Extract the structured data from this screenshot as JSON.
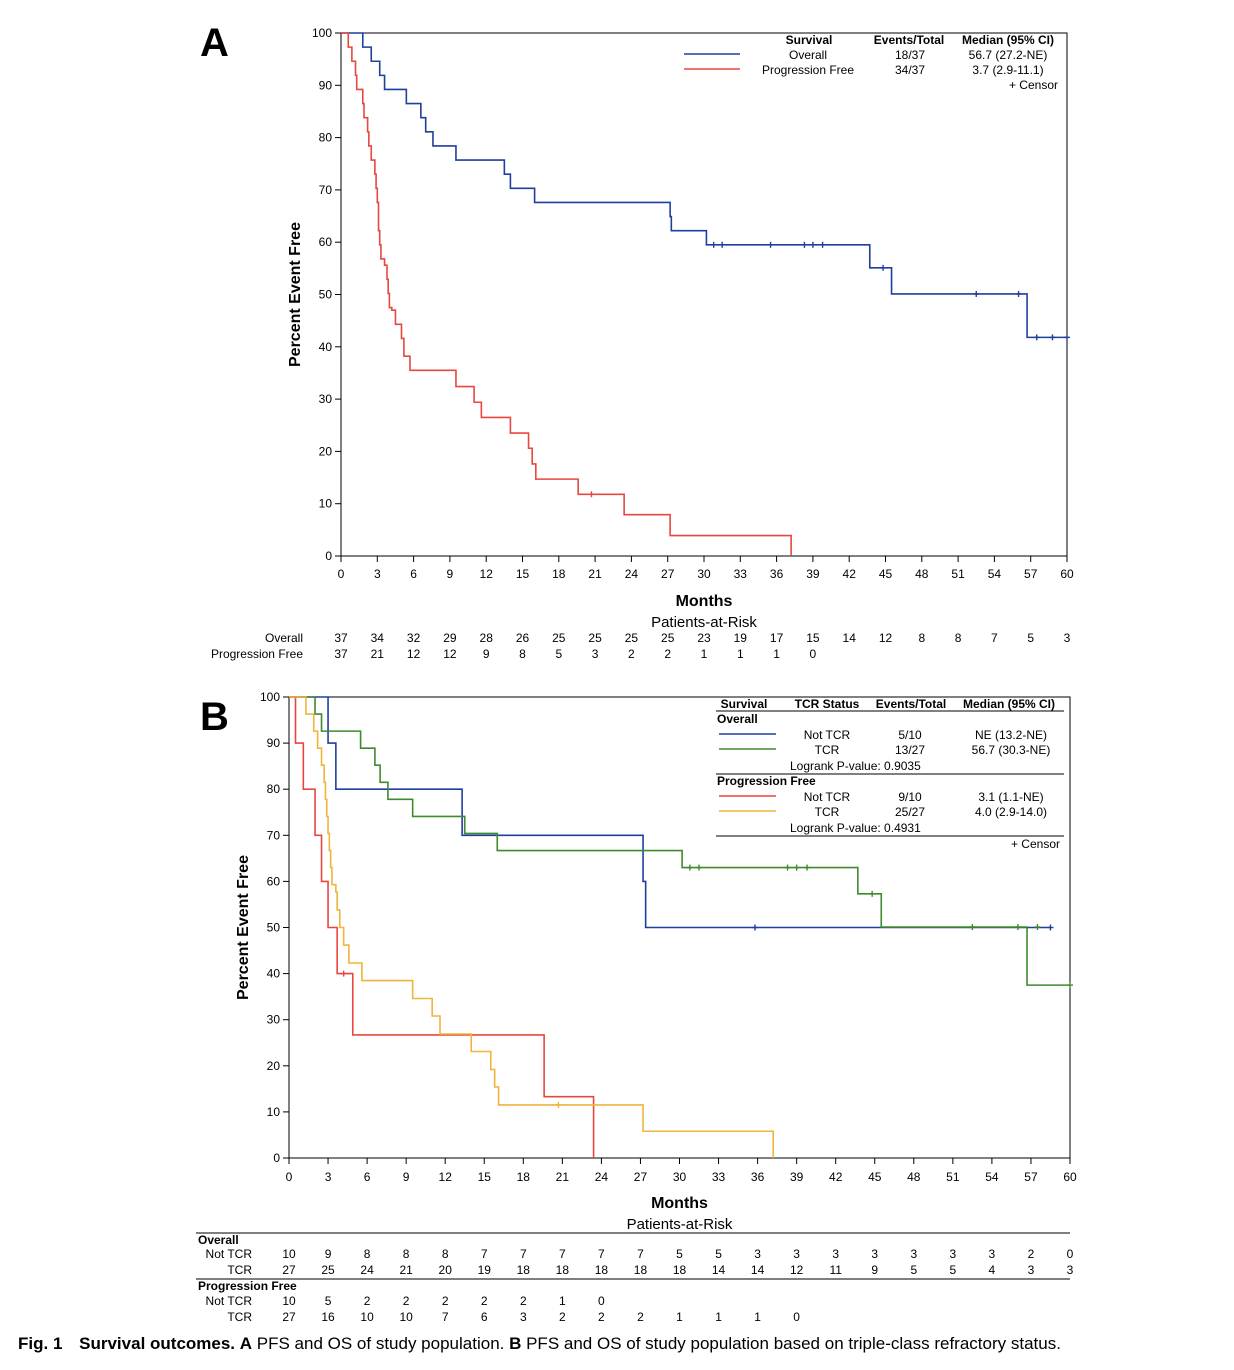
{
  "caption": {
    "label": "Fig. 1",
    "title": "Survival outcomes.",
    "a_letter": "A",
    "a_text": " PFS and OS of study population. ",
    "b_letter": "B",
    "b_text": " PFS and OS of study population based on triple-class refractory status."
  },
  "colors": {
    "blue": "#1f3f9e",
    "red": "#e8473f",
    "green": "#3f8a2e",
    "orange": "#f0b43c"
  },
  "chart_data": [
    {
      "panel": "A",
      "type": "line",
      "step": true,
      "xlabel": "Months",
      "ylabel": "Percent Event Free",
      "xlim": [
        0,
        60
      ],
      "ylim": [
        0,
        100
      ],
      "xticks": [
        0,
        3,
        6,
        9,
        12,
        15,
        18,
        21,
        24,
        27,
        30,
        33,
        36,
        39,
        42,
        45,
        48,
        51,
        54,
        57,
        60
      ],
      "yticks": [
        0,
        10,
        20,
        30,
        40,
        50,
        60,
        70,
        80,
        90,
        100
      ],
      "legend": {
        "headers": [
          "Survival",
          "Events/Total",
          "Median (95% CI)"
        ],
        "rows": [
          {
            "name": "Overall",
            "events": "18/37",
            "median": "56.7 (27.2-NE)",
            "color": "blue"
          },
          {
            "name": "Progression Free",
            "events": "34/37",
            "median": "3.7 (2.9-11.1)",
            "color": "red"
          }
        ],
        "censor": "+  Censor"
      },
      "series": [
        {
          "name": "Overall",
          "color": "blue",
          "steps": [
            [
              0,
              100
            ],
            [
              1.8,
              97.3
            ],
            [
              2.5,
              94.6
            ],
            [
              3.2,
              91.9
            ],
            [
              3.6,
              89.2
            ],
            [
              5.4,
              86.5
            ],
            [
              6.6,
              83.8
            ],
            [
              7,
              81.1
            ],
            [
              7.6,
              78.4
            ],
            [
              9.5,
              75.7
            ],
            [
              13.5,
              73
            ],
            [
              14,
              70.3
            ],
            [
              16,
              67.6
            ],
            [
              27.2,
              64.9
            ],
            [
              27.3,
              62.2
            ],
            [
              30.2,
              59.5
            ],
            [
              43.7,
              55.1
            ],
            [
              45.5,
              50.1
            ],
            [
              56.7,
              41.8
            ],
            [
              60,
              41.8
            ]
          ],
          "censors": [
            [
              30.8,
              59.5
            ],
            [
              31.5,
              59.5
            ],
            [
              35.5,
              59.5
            ],
            [
              38.3,
              59.5
            ],
            [
              39,
              59.5
            ],
            [
              39.8,
              59.5
            ],
            [
              44.8,
              55.1
            ],
            [
              52.5,
              50.1
            ],
            [
              56,
              50.1
            ],
            [
              57.5,
              41.8
            ],
            [
              58.8,
              41.8
            ],
            [
              60,
              41.8
            ]
          ]
        },
        {
          "name": "Progression Free",
          "color": "red",
          "steps": [
            [
              0,
              100
            ],
            [
              0.6,
              97.3
            ],
            [
              0.9,
              94.6
            ],
            [
              1.2,
              91.9
            ],
            [
              1.3,
              89.2
            ],
            [
              1.8,
              86.5
            ],
            [
              1.9,
              83.8
            ],
            [
              2.2,
              81.1
            ],
            [
              2.3,
              78.4
            ],
            [
              2.5,
              75.7
            ],
            [
              2.8,
              73
            ],
            [
              2.9,
              70.3
            ],
            [
              3,
              67.6
            ],
            [
              3.1,
              62.2
            ],
            [
              3.2,
              59.5
            ],
            [
              3.3,
              56.8
            ],
            [
              3.6,
              55.6
            ],
            [
              3.8,
              52.9
            ],
            [
              3.9,
              50.2
            ],
            [
              4,
              47.5
            ],
            [
              4.2,
              47
            ],
            [
              4.5,
              44.3
            ],
            [
              5,
              41.6
            ],
            [
              5.2,
              38.2
            ],
            [
              5.7,
              35.5
            ],
            [
              9.5,
              32.4
            ],
            [
              11,
              29.4
            ],
            [
              11.6,
              26.5
            ],
            [
              14,
              23.5
            ],
            [
              15.5,
              20.6
            ],
            [
              15.8,
              17.6
            ],
            [
              16.1,
              14.7
            ],
            [
              19.6,
              11.8
            ],
            [
              23.4,
              7.9
            ],
            [
              27.2,
              3.9
            ],
            [
              37.2,
              0
            ]
          ],
          "censors": [
            [
              20.7,
              11.8
            ]
          ]
        }
      ],
      "risk_table": {
        "title": "Patients-at-Risk",
        "times": [
          0,
          3,
          6,
          9,
          12,
          15,
          18,
          21,
          24,
          27,
          30,
          33,
          36,
          39,
          42,
          45,
          48,
          51,
          54,
          57,
          60
        ],
        "rows": [
          {
            "label": "Overall",
            "values": [
              "37",
              "34",
              "32",
              "29",
              "28",
              "26",
              "25",
              "25",
              "25",
              "25",
              "23",
              "19",
              "17",
              "15",
              "14",
              "12",
              "8",
              "8",
              "7",
              "5",
              "3"
            ]
          },
          {
            "label": "Progression Free",
            "values": [
              "37",
              "21",
              "12",
              "12",
              "9",
              "8",
              "5",
              "3",
              "2",
              "2",
              "1",
              "1",
              "1",
              "0",
              "",
              "",
              "",
              "",
              "",
              "",
              ""
            ]
          }
        ]
      }
    },
    {
      "panel": "B",
      "type": "line",
      "step": true,
      "xlabel": "Months",
      "ylabel": "Percent Event Free",
      "xlim": [
        0,
        60
      ],
      "ylim": [
        0,
        100
      ],
      "xticks": [
        0,
        3,
        6,
        9,
        12,
        15,
        18,
        21,
        24,
        27,
        30,
        33,
        36,
        39,
        42,
        45,
        48,
        51,
        54,
        57,
        60
      ],
      "yticks": [
        0,
        10,
        20,
        30,
        40,
        50,
        60,
        70,
        80,
        90,
        100
      ],
      "legend": {
        "headers": [
          "Survival",
          "TCR Status",
          "Events/Total",
          "Median (95% CI)"
        ],
        "group1": {
          "title": "Overall",
          "rows": [
            {
              "name": "Not TCR",
              "events": "5/10",
              "median": "NE (13.2-NE)",
              "color": "blue"
            },
            {
              "name": "TCR",
              "events": "13/27",
              "median": "56.7 (30.3-NE)",
              "color": "green"
            }
          ],
          "logrank": "Logrank P-value: 0.9035"
        },
        "group2": {
          "title": "Progression Free",
          "rows": [
            {
              "name": "Not TCR",
              "events": "9/10",
              "median": "3.1 (1.1-NE)",
              "color": "red"
            },
            {
              "name": "TCR",
              "events": "25/27",
              "median": "4.0 (2.9-14.0)",
              "color": "orange"
            }
          ],
          "logrank": "Logrank P-value: 0.4931"
        },
        "censor": "+  Censor"
      },
      "series": [
        {
          "name": "Overall Not TCR",
          "color": "blue",
          "steps": [
            [
              0,
              100
            ],
            [
              3,
              90
            ],
            [
              3.6,
              80
            ],
            [
              13.3,
              70
            ],
            [
              27.2,
              60
            ],
            [
              27.4,
              50
            ],
            [
              58.5,
              50
            ]
          ],
          "censors": [
            [
              35.8,
              50
            ],
            [
              58.5,
              50
            ]
          ]
        },
        {
          "name": "Overall TCR",
          "color": "green",
          "steps": [
            [
              0,
              100
            ],
            [
              2,
              96.3
            ],
            [
              2.5,
              92.6
            ],
            [
              5.5,
              88.9
            ],
            [
              6.6,
              85.2
            ],
            [
              7,
              81.5
            ],
            [
              7.6,
              77.8
            ],
            [
              9.5,
              74.1
            ],
            [
              13.5,
              70.4
            ],
            [
              16,
              66.7
            ],
            [
              30.2,
              63
            ],
            [
              43.7,
              57.3
            ],
            [
              45.5,
              50.1
            ],
            [
              56.7,
              37.5
            ],
            [
              60,
              37.5
            ]
          ],
          "censors": [
            [
              30.8,
              63
            ],
            [
              31.5,
              63
            ],
            [
              38.3,
              63
            ],
            [
              39,
              63
            ],
            [
              39.8,
              63
            ],
            [
              44.8,
              57.3
            ],
            [
              52.5,
              50.1
            ],
            [
              56,
              50.1
            ],
            [
              57.5,
              50.1
            ],
            [
              60,
              37.5
            ]
          ]
        },
        {
          "name": "Progression Free Not TCR",
          "color": "red",
          "steps": [
            [
              0,
              100
            ],
            [
              0.5,
              90
            ],
            [
              1.1,
              80
            ],
            [
              2,
              70
            ],
            [
              2.5,
              60
            ],
            [
              3,
              50
            ],
            [
              3.7,
              40
            ],
            [
              4.9,
              26.7
            ],
            [
              19.6,
              13.3
            ],
            [
              23.4,
              0
            ]
          ],
          "censors": [
            [
              4.2,
              40
            ]
          ]
        },
        {
          "name": "Progression Free TCR",
          "color": "orange",
          "steps": [
            [
              0,
              100
            ],
            [
              1.3,
              96.3
            ],
            [
              1.9,
              92.6
            ],
            [
              2.2,
              88.9
            ],
            [
              2.5,
              85.2
            ],
            [
              2.7,
              81.5
            ],
            [
              2.8,
              77.8
            ],
            [
              2.9,
              74.1
            ],
            [
              3,
              70.4
            ],
            [
              3.1,
              66.7
            ],
            [
              3.2,
              63
            ],
            [
              3.3,
              59.3
            ],
            [
              3.6,
              57.7
            ],
            [
              3.7,
              53.8
            ],
            [
              3.9,
              50
            ],
            [
              4.2,
              46.2
            ],
            [
              4.6,
              42.3
            ],
            [
              5.6,
              38.5
            ],
            [
              9.5,
              34.6
            ],
            [
              11,
              30.8
            ],
            [
              11.6,
              26.9
            ],
            [
              14,
              23.1
            ],
            [
              15.5,
              19.2
            ],
            [
              15.8,
              15.4
            ],
            [
              16.1,
              11.5
            ],
            [
              27.2,
              5.8
            ],
            [
              37.2,
              0
            ]
          ],
          "censors": [
            [
              20.7,
              11.5
            ]
          ]
        }
      ],
      "risk_table": {
        "title": "Patients-at-Risk",
        "times": [
          0,
          3,
          6,
          9,
          12,
          15,
          18,
          21,
          24,
          27,
          30,
          33,
          36,
          39,
          42,
          45,
          48,
          51,
          54,
          57,
          60
        ],
        "groups": [
          {
            "title": "Overall",
            "rows": [
              {
                "label": "Not TCR",
                "values": [
                  "10",
                  "9",
                  "8",
                  "8",
                  "8",
                  "7",
                  "7",
                  "7",
                  "7",
                  "7",
                  "5",
                  "5",
                  "3",
                  "3",
                  "3",
                  "3",
                  "3",
                  "3",
                  "3",
                  "2",
                  "0"
                ]
              },
              {
                "label": "TCR",
                "values": [
                  "27",
                  "25",
                  "24",
                  "21",
                  "20",
                  "19",
                  "18",
                  "18",
                  "18",
                  "18",
                  "18",
                  "14",
                  "14",
                  "12",
                  "11",
                  "9",
                  "5",
                  "5",
                  "4",
                  "3",
                  "3"
                ]
              }
            ]
          },
          {
            "title": "Progression Free",
            "rows": [
              {
                "label": "Not TCR",
                "values": [
                  "10",
                  "5",
                  "2",
                  "2",
                  "2",
                  "2",
                  "2",
                  "1",
                  "0",
                  "",
                  "",
                  "",
                  "",
                  "",
                  "",
                  "",
                  "",
                  "",
                  "",
                  "",
                  ""
                ]
              },
              {
                "label": "TCR",
                "values": [
                  "27",
                  "16",
                  "10",
                  "10",
                  "7",
                  "6",
                  "3",
                  "2",
                  "2",
                  "2",
                  "1",
                  "1",
                  "1",
                  "0",
                  "",
                  "",
                  "",
                  "",
                  "",
                  "",
                  ""
                ]
              }
            ]
          }
        ]
      }
    }
  ]
}
